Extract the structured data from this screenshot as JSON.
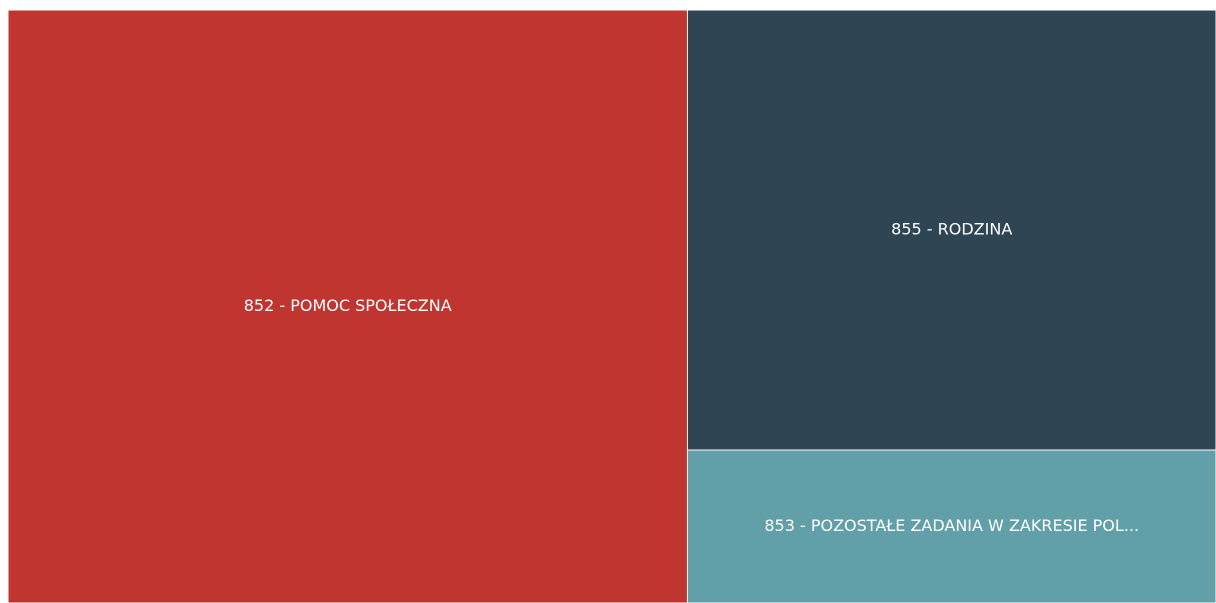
{
  "chart_data": {
    "type": "treemap",
    "categories": [
      "852 - POMOC SPOŁECZNA",
      "855 - RODZINA",
      "853 - POZOSTAŁE ZADANIA W ZAKRESIE POL..."
    ],
    "values": [
      56.3,
      32.5,
      11.3
    ],
    "colors": [
      "#c0352f",
      "#2f4554",
      "#61a0a8"
    ]
  }
}
